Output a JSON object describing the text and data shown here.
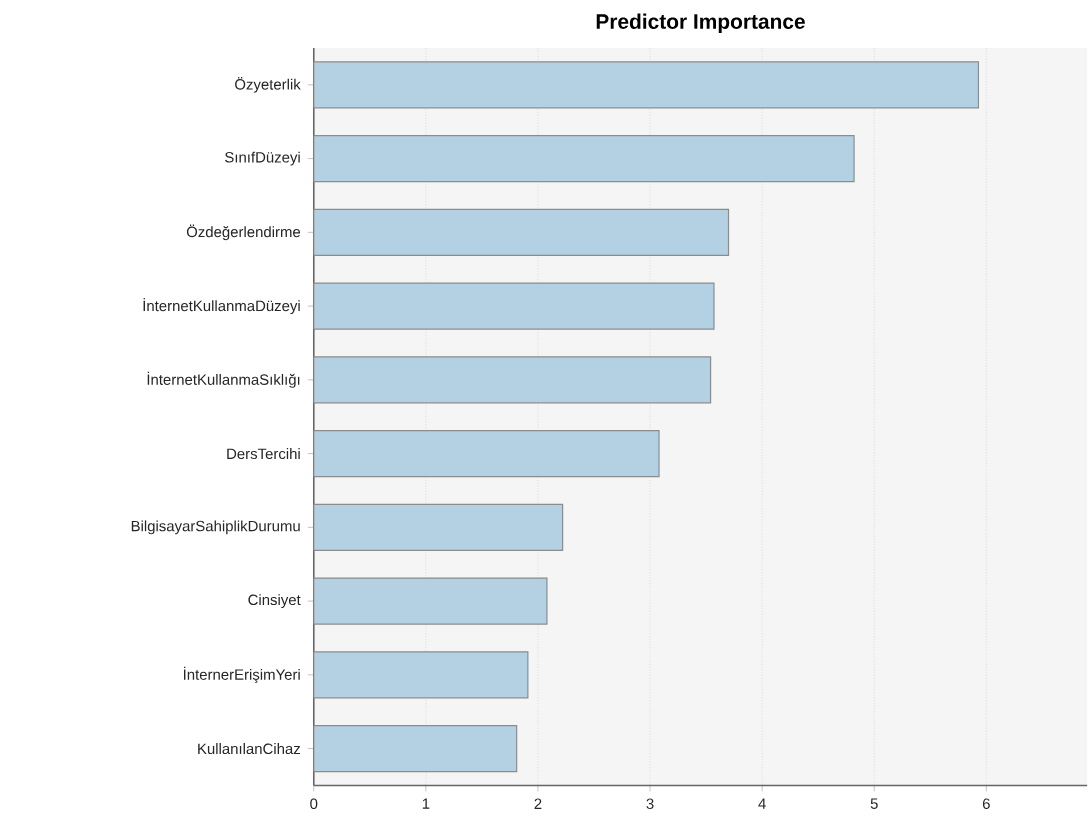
{
  "chart_data": {
    "type": "bar",
    "orientation": "horizontal",
    "title": "Predictor Importance",
    "categories": [
      "Özyeterlik",
      "SınıfDüzeyi",
      "Özdeğerlendirme",
      "İnternetKullanmaDüzeyi",
      "İnternetKullanmaSıklığı",
      "DersTercihi",
      "BilgisayarSahiplikDurumu",
      "Cinsiyet",
      "İnternerErişimYeri",
      "KullanılanCihaz"
    ],
    "values": [
      5.93,
      4.82,
      3.7,
      3.57,
      3.54,
      3.08,
      2.22,
      2.08,
      1.91,
      1.81
    ],
    "color": "#b3d1e3",
    "xlim": [
      0,
      6.9
    ],
    "xticks": [
      0,
      1,
      2,
      3,
      4,
      5,
      6
    ],
    "grid": "x"
  }
}
